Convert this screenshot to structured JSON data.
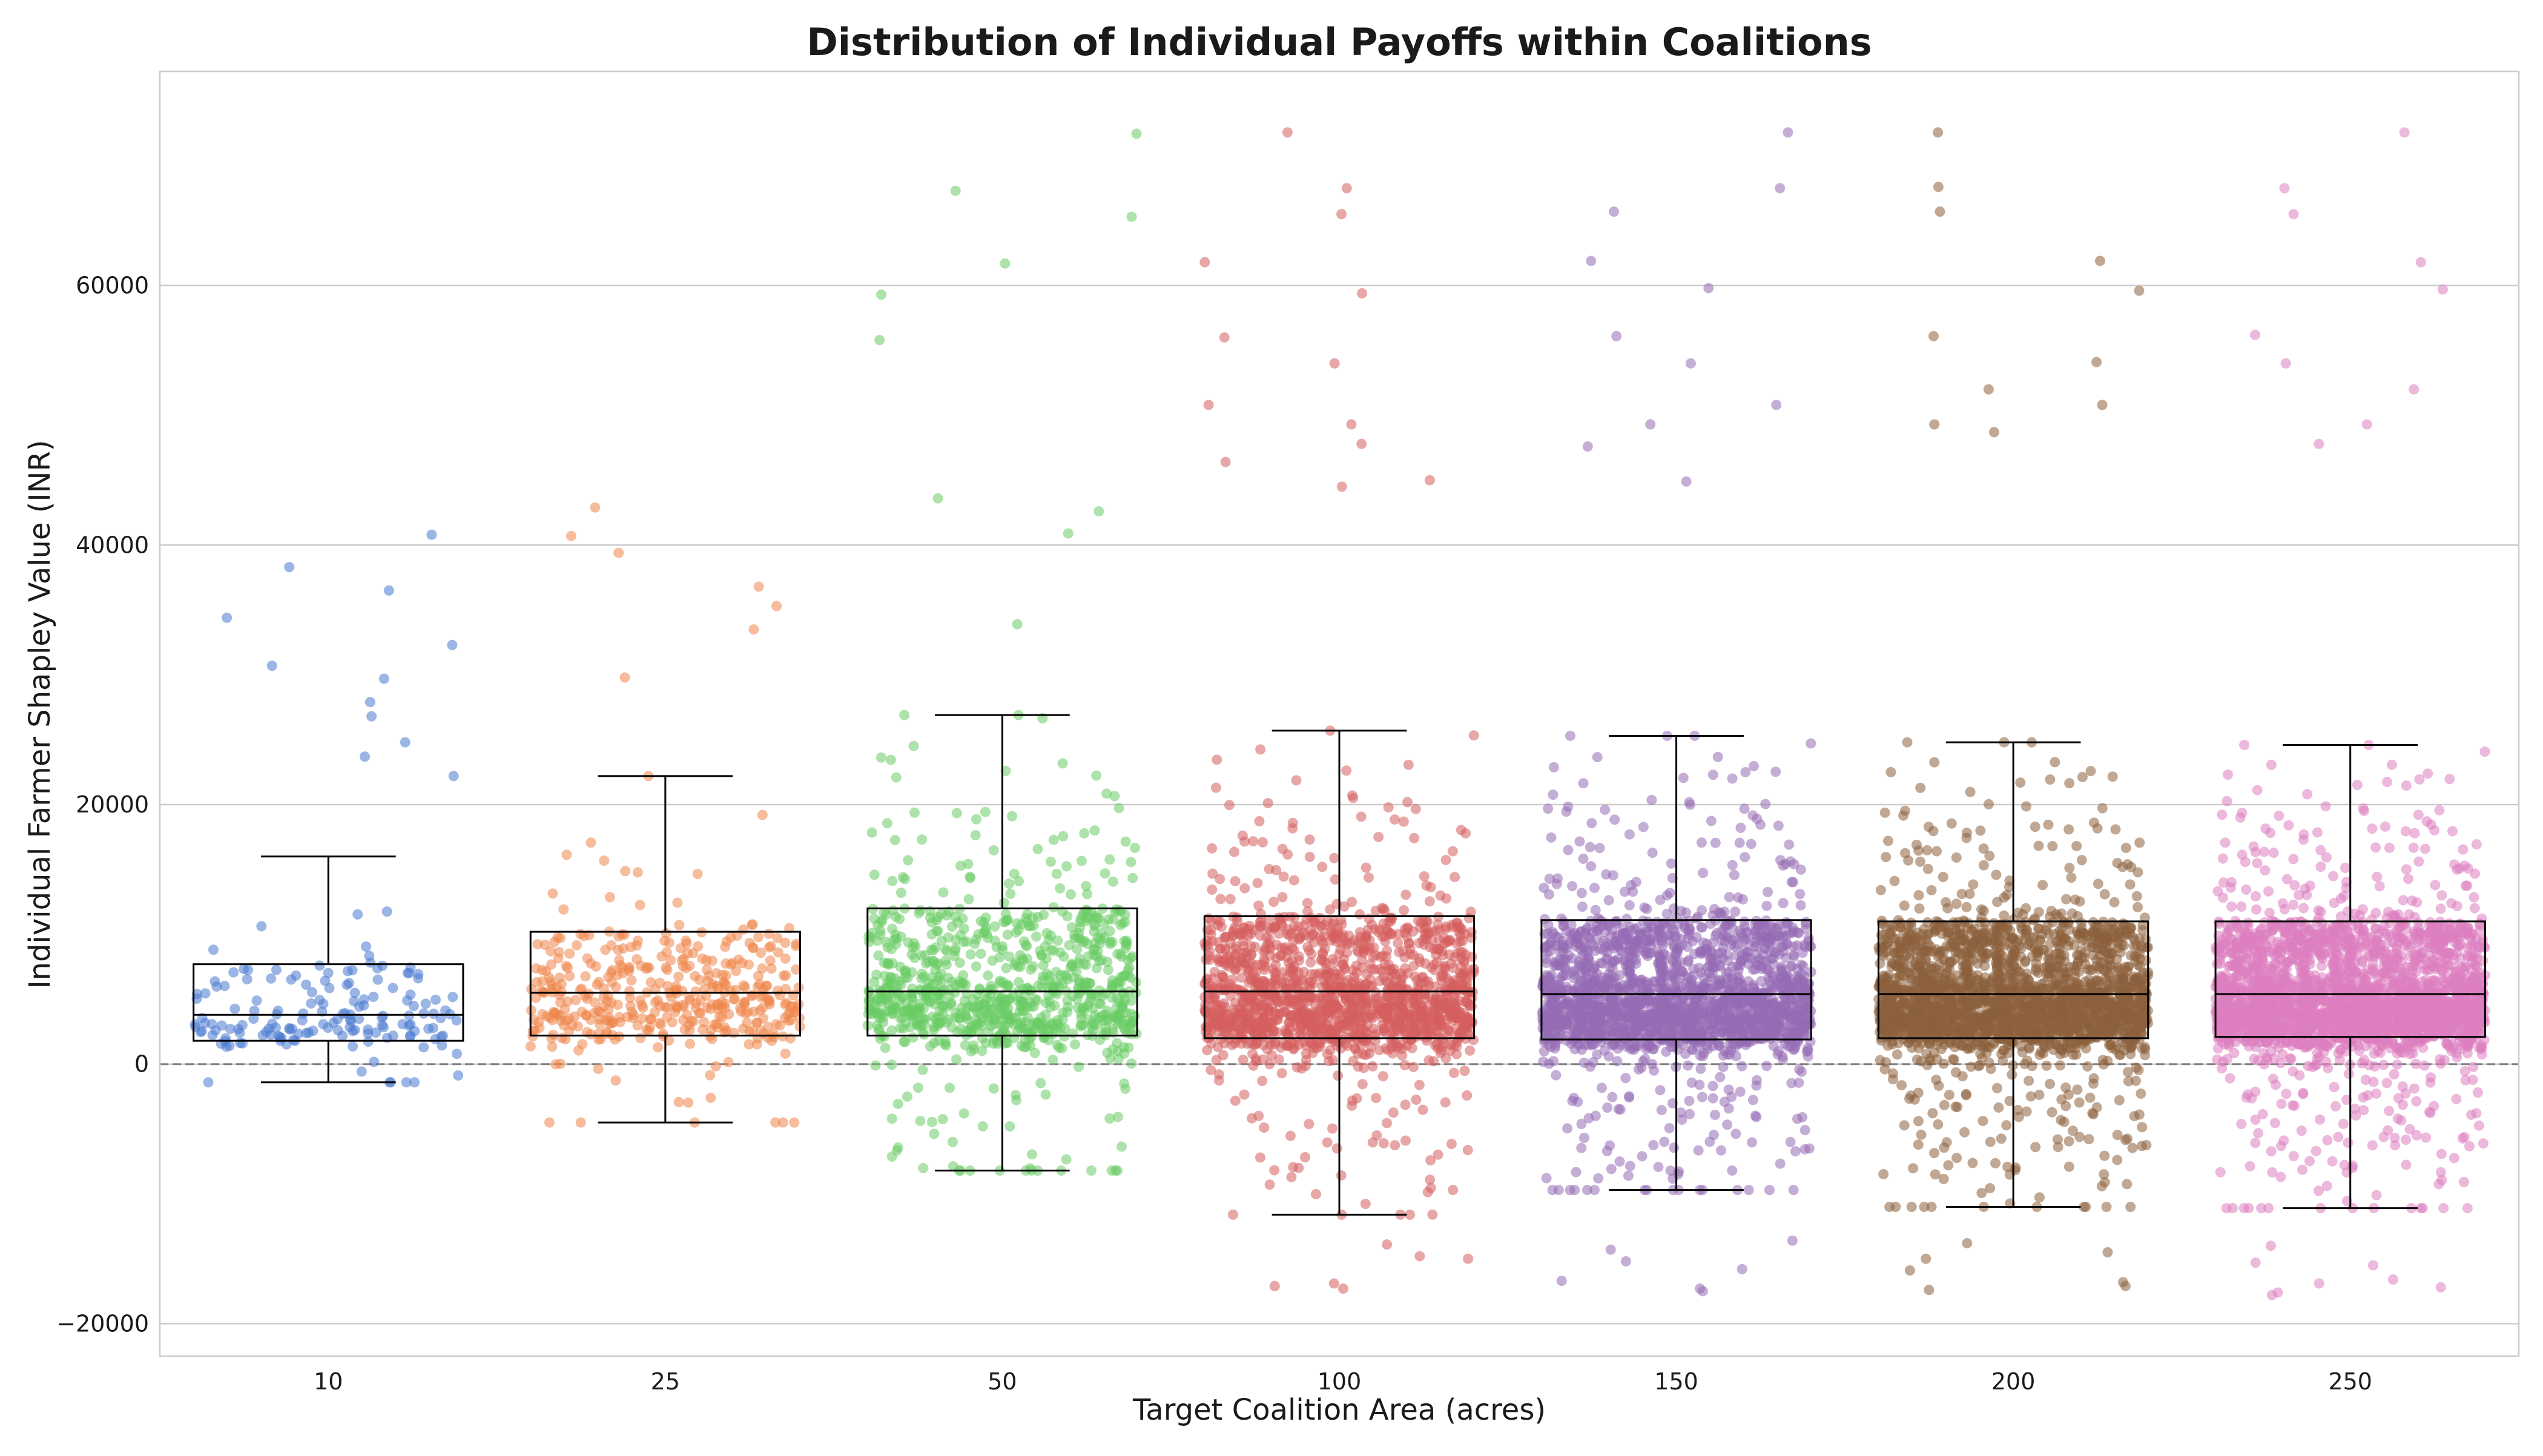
{
  "chart_data": {
    "type": "box",
    "title": "Distribution of Individual Payoffs within Coalitions",
    "xlabel": "Target Coalition Area (acres)",
    "ylabel": "Individual Farmer Shapley Value (INR)",
    "ylim": [
      -22500,
      76500
    ],
    "y_ticks": [
      -20000,
      0,
      20000,
      40000,
      60000
    ],
    "y_tick_labels": [
      "−20000",
      "0",
      "20000",
      "40000",
      "60000"
    ],
    "grid": "horizontal",
    "reference_line": 0,
    "categories": [
      "10",
      "25",
      "50",
      "100",
      "150",
      "200",
      "250"
    ],
    "colors": [
      "#4878d0",
      "#ee854a",
      "#6acc64",
      "#d65f5f",
      "#956cb4",
      "#8c613c",
      "#dc7ec0"
    ],
    "boxes": [
      {
        "category": "10",
        "whisker_low": -1400,
        "q1": 1800,
        "median": 3800,
        "q3": 7700,
        "whisker_high": 16000
      },
      {
        "category": "25",
        "whisker_low": -4500,
        "q1": 2200,
        "median": 5500,
        "q3": 10200,
        "whisker_high": 22200
      },
      {
        "category": "50",
        "whisker_low": -8200,
        "q1": 2200,
        "median": 5600,
        "q3": 12000,
        "whisker_high": 26900
      },
      {
        "category": "100",
        "whisker_low": -11600,
        "q1": 2000,
        "median": 5600,
        "q3": 11400,
        "whisker_high": 25700
      },
      {
        "category": "150",
        "whisker_low": -9700,
        "q1": 1900,
        "median": 5400,
        "q3": 11100,
        "whisker_high": 25300
      },
      {
        "category": "200",
        "whisker_low": -11000,
        "q1": 2000,
        "median": 5400,
        "q3": 11000,
        "whisker_high": 24800
      },
      {
        "category": "250",
        "whisker_low": -11100,
        "q1": 2100,
        "median": 5400,
        "q3": 11000,
        "whisker_high": 24600
      }
    ],
    "point_counts": [
      160,
      420,
      900,
      1600,
      2100,
      2400,
      2700
    ],
    "outliers": [
      [
        32300,
        34400,
        26800,
        24800,
        40800,
        27900,
        38300,
        30700,
        22200,
        23700,
        29700,
        36500
      ],
      [
        39400,
        42900,
        33500,
        40700,
        36800,
        35300,
        29800
      ],
      [
        61700,
        55800,
        71700,
        65300,
        59300,
        67300,
        42600,
        43600,
        40900,
        33900
      ],
      [
        59400,
        67500,
        65500,
        71800,
        61800,
        56000,
        54000,
        50800,
        49300,
        47800,
        46400,
        45000,
        44500,
        -13900,
        -15000,
        -16900,
        -17300,
        -14800,
        -17100
      ],
      [
        71800,
        67500,
        61900,
        59800,
        65700,
        56100,
        54000,
        50800,
        49300,
        47600,
        44900,
        -13600,
        -15200,
        -16700,
        -17300,
        -17500,
        -15800,
        -14300
      ],
      [
        71800,
        67600,
        65700,
        61900,
        59600,
        56100,
        54100,
        52000,
        50800,
        49300,
        48700,
        -13800,
        -15000,
        -16800,
        -17100,
        -17400,
        -14500,
        -15900
      ],
      [
        71800,
        67500,
        65500,
        61800,
        59700,
        56200,
        54000,
        52000,
        49300,
        47800,
        -14000,
        -15300,
        -16900,
        -17200,
        -17600,
        -17800,
        -15500,
        -16600
      ]
    ]
  }
}
